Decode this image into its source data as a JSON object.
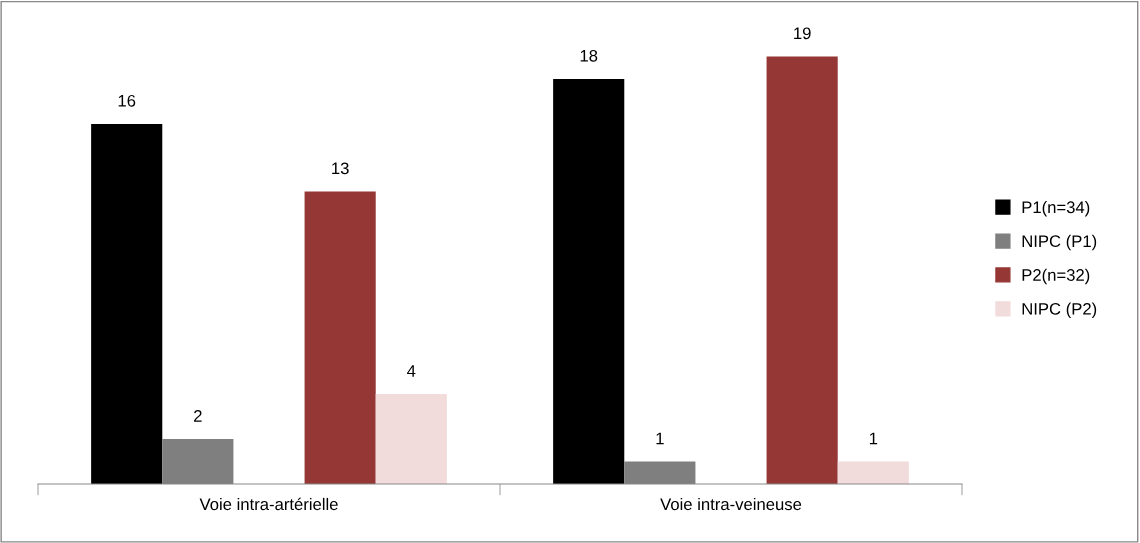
{
  "chart_data": {
    "type": "bar",
    "categories": [
      "Voie intra-artérielle",
      "Voie intra-veineuse"
    ],
    "series": [
      {
        "name": "P1(n=34)",
        "color": "#000000",
        "values": [
          16,
          18
        ]
      },
      {
        "name": "NIPC (P1)",
        "color": "#7f7f7f",
        "values": [
          2,
          1
        ]
      },
      {
        "name": "P2(n=32)",
        "color": "#953735",
        "values": [
          13,
          19
        ]
      },
      {
        "name": "NIPC (P2)",
        "color": "#f2dcdb",
        "values": [
          4,
          1
        ]
      }
    ],
    "data_labels": true,
    "legend": "right",
    "grid": false
  }
}
